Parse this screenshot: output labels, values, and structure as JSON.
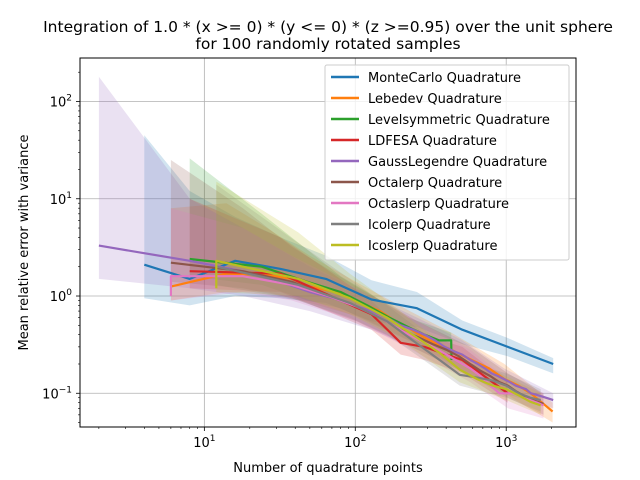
{
  "chart_data": {
    "type": "line",
    "title": "Integration of 1.0 * (x >= 0) * (y <= 0) * (z >=0.95) over the unit sphere",
    "subtitle": "for 100 randomly rotated samples",
    "xlabel": "Number of quadrature points",
    "ylabel": "Mean relative error with variance",
    "x_scale": "log",
    "y_scale": "log",
    "xlim": [
      1.5,
      2900
    ],
    "ylim": [
      0.045,
      280
    ],
    "x_ticks": [
      {
        "value": 10,
        "base": "10",
        "exp": "1"
      },
      {
        "value": 100,
        "base": "10",
        "exp": "2"
      },
      {
        "value": 1000,
        "base": "10",
        "exp": "3"
      }
    ],
    "y_ticks": [
      {
        "value": 0.1,
        "base": "10",
        "exp": "−1"
      },
      {
        "value": 1,
        "base": "10",
        "exp": "0"
      },
      {
        "value": 10,
        "base": "10",
        "exp": "1"
      },
      {
        "value": 100,
        "base": "10",
        "exp": "2"
      }
    ],
    "grid": true,
    "legend_position": "top-right",
    "series": [
      {
        "name": "MonteCarlo Quadrature",
        "color": "#1f77b4",
        "x": [
          4,
          8,
          16,
          32,
          64,
          128,
          256,
          512,
          1024,
          2048
        ],
        "y": [
          2.1,
          1.5,
          2.3,
          1.9,
          1.5,
          0.92,
          0.75,
          0.45,
          0.3,
          0.2
        ],
        "band": [
          [
            4,
            0.95,
            45
          ],
          [
            8,
            0.8,
            12
          ],
          [
            16,
            1.0,
            6.5
          ],
          [
            32,
            0.95,
            4.0
          ],
          [
            64,
            0.85,
            2.6
          ],
          [
            128,
            0.55,
            1.45
          ],
          [
            256,
            0.48,
            1.1
          ],
          [
            512,
            0.32,
            0.56
          ],
          [
            1024,
            0.24,
            0.37
          ],
          [
            2048,
            0.16,
            0.23
          ]
        ]
      },
      {
        "name": "Lebedev Quadrature",
        "color": "#ff7f0e",
        "x": [
          6,
          14,
          26,
          38,
          50,
          74,
          86,
          110,
          146,
          170,
          194,
          230,
          266,
          302,
          350,
          434,
          590,
          770,
          974,
          1202,
          1454,
          1730,
          2030
        ],
        "y": [
          1.25,
          1.7,
          1.65,
          1.5,
          1.25,
          1.1,
          1.0,
          0.85,
          0.7,
          0.6,
          0.52,
          0.46,
          0.4,
          0.36,
          0.32,
          0.28,
          0.22,
          0.18,
          0.14,
          0.12,
          0.1,
          0.08,
          0.065
        ],
        "band": [
          [
            6,
            0.9,
            8.0
          ],
          [
            14,
            1.1,
            9.0
          ],
          [
            26,
            1.1,
            5.0
          ],
          [
            50,
            0.85,
            2.6
          ],
          [
            110,
            0.6,
            1.3
          ],
          [
            230,
            0.35,
            0.7
          ],
          [
            434,
            0.2,
            0.42
          ],
          [
            974,
            0.1,
            0.2
          ],
          [
            2030,
            0.05,
            0.08
          ]
        ]
      },
      {
        "name": "Levelsymmetric Quadrature",
        "color": "#2ca02c",
        "x": [
          8,
          24,
          48,
          80,
          120,
          168,
          224,
          288,
          360,
          432,
          434
        ],
        "y": [
          2.4,
          2.0,
          1.4,
          1.1,
          0.8,
          0.6,
          0.48,
          0.4,
          0.35,
          0.35,
          0.22
        ],
        "band": [
          [
            8,
            1.6,
            26
          ],
          [
            24,
            1.3,
            7.0
          ],
          [
            48,
            0.9,
            3.0
          ],
          [
            80,
            0.75,
            1.6
          ],
          [
            120,
            0.55,
            1.1
          ],
          [
            224,
            0.35,
            0.6
          ],
          [
            432,
            0.25,
            0.42
          ],
          [
            434,
            0.16,
            0.3
          ]
        ]
      },
      {
        "name": "LDFESA Quadrature",
        "color": "#d62728",
        "x": [
          8,
          32,
          128,
          200,
          288,
          512,
          1024
        ],
        "y": [
          1.8,
          1.7,
          0.65,
          0.33,
          0.3,
          0.22,
          0.1
        ],
        "band": [
          [
            8,
            1.2,
            10
          ],
          [
            32,
            1.1,
            4.0
          ],
          [
            128,
            0.45,
            0.9
          ],
          [
            200,
            0.25,
            0.45
          ],
          [
            288,
            0.22,
            0.4
          ],
          [
            512,
            0.16,
            0.3
          ],
          [
            1024,
            0.08,
            0.13
          ]
        ]
      },
      {
        "name": "GaussLegendre Quadrature",
        "color": "#9467bd",
        "x": [
          2,
          8,
          18,
          32,
          50,
          72,
          98,
          128,
          162,
          200,
          242,
          288,
          338,
          392,
          450,
          512,
          578,
          648,
          722,
          800,
          882,
          968,
          1058,
          1152,
          1250,
          1352,
          1458,
          1568,
          1682,
          1800,
          1922,
          2048
        ],
        "y": [
          3.3,
          2.3,
          1.8,
          1.4,
          1.1,
          0.95,
          0.8,
          0.7,
          0.6,
          0.5,
          0.45,
          0.4,
          0.35,
          0.3,
          0.27,
          0.25,
          0.22,
          0.2,
          0.18,
          0.16,
          0.15,
          0.14,
          0.13,
          0.12,
          0.115,
          0.11,
          0.1,
          0.097,
          0.094,
          0.091,
          0.088,
          0.085
        ],
        "band": [
          [
            2,
            1.5,
            180
          ],
          [
            8,
            1.2,
            10
          ],
          [
            18,
            1.0,
            5.0
          ],
          [
            50,
            0.7,
            2.0
          ],
          [
            128,
            0.45,
            1.0
          ],
          [
            288,
            0.26,
            0.55
          ],
          [
            512,
            0.17,
            0.35
          ],
          [
            968,
            0.1,
            0.18
          ],
          [
            2048,
            0.07,
            0.1
          ]
        ]
      },
      {
        "name": "Octalerp Quadrature",
        "color": "#8c564b",
        "x": [
          6,
          18,
          38,
          66,
          102,
          146,
          198,
          258,
          326,
          402,
          486,
          578,
          678,
          786,
          902,
          1026,
          1158,
          1298,
          1446,
          1602,
          1766
        ],
        "y": [
          2.2,
          1.8,
          1.4,
          1.0,
          0.78,
          0.6,
          0.45,
          0.38,
          0.32,
          0.28,
          0.24,
          0.2,
          0.17,
          0.15,
          0.13,
          0.12,
          0.105,
          0.095,
          0.088,
          0.082,
          0.078
        ],
        "band": [
          [
            6,
            1.4,
            25
          ],
          [
            18,
            1.2,
            8.0
          ],
          [
            38,
            0.95,
            3.2
          ],
          [
            102,
            0.55,
            1.25
          ],
          [
            258,
            0.28,
            0.55
          ],
          [
            578,
            0.15,
            0.3
          ],
          [
            1026,
            0.09,
            0.16
          ],
          [
            1766,
            0.06,
            0.1
          ]
        ]
      },
      {
        "name": "Octaslerp Quadrature",
        "color": "#e377c2",
        "x": [
          6,
          6,
          18,
          38,
          66,
          102,
          146,
          198,
          258,
          326,
          402,
          486,
          578,
          678,
          786,
          902,
          1026,
          1158,
          1298,
          1446,
          1602,
          1766
        ],
        "y": [
          1.0,
          1.6,
          1.6,
          1.3,
          1.0,
          0.78,
          0.6,
          0.45,
          0.36,
          0.3,
          0.25,
          0.21,
          0.18,
          0.15,
          0.12,
          0.1,
          0.1,
          0.1,
          0.09,
          0.085,
          0.08,
          0.075
        ],
        "band": [
          [
            6,
            0.9,
            8.0
          ],
          [
            18,
            1.1,
            5.0
          ],
          [
            38,
            0.9,
            2.6
          ],
          [
            102,
            0.55,
            1.2
          ],
          [
            258,
            0.26,
            0.55
          ],
          [
            578,
            0.13,
            0.28
          ],
          [
            1026,
            0.07,
            0.14
          ],
          [
            1766,
            0.055,
            0.1
          ]
        ]
      },
      {
        "name": "Icolerp Quadrature",
        "color": "#7f7f7f",
        "x": [
          12,
          42,
          92,
          162,
          252,
          362,
          492,
          642,
          812,
          1002,
          1212,
          1442,
          1692
        ],
        "y": [
          2.0,
          1.3,
          0.85,
          0.55,
          0.33,
          0.22,
          0.155,
          0.145,
          0.135,
          0.12,
          0.1,
          0.09,
          0.085
        ],
        "band": [
          [
            12,
            1.3,
            14
          ],
          [
            42,
            0.9,
            3.5
          ],
          [
            92,
            0.6,
            1.5
          ],
          [
            162,
            0.4,
            0.8
          ],
          [
            252,
            0.25,
            0.48
          ],
          [
            492,
            0.12,
            0.22
          ],
          [
            1002,
            0.09,
            0.16
          ],
          [
            1692,
            0.065,
            0.11
          ]
        ]
      },
      {
        "name": "Icoslerp Quadrature",
        "color": "#bcbd22",
        "x": [
          12,
          12,
          42,
          92,
          162,
          252,
          362,
          492,
          642,
          812,
          1002,
          1212,
          1442,
          1692
        ],
        "y": [
          1.2,
          2.3,
          1.5,
          0.95,
          0.6,
          0.38,
          0.26,
          0.175,
          0.14,
          0.12,
          0.11,
          0.095,
          0.082,
          0.075
        ],
        "band": [
          [
            12,
            1.1,
            15
          ],
          [
            42,
            1.0,
            4.5
          ],
          [
            92,
            0.65,
            1.7
          ],
          [
            162,
            0.42,
            0.9
          ],
          [
            252,
            0.27,
            0.52
          ],
          [
            492,
            0.13,
            0.25
          ],
          [
            1002,
            0.085,
            0.15
          ],
          [
            1692,
            0.06,
            0.1
          ]
        ]
      }
    ]
  }
}
